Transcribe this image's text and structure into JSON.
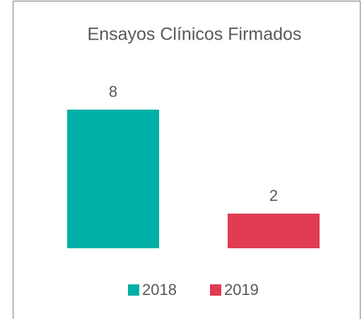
{
  "chart_data": {
    "type": "bar",
    "title": "Ensayos Clínicos Firmados",
    "categories": [
      null
    ],
    "series": [
      {
        "name": "2018",
        "color": "#00b0a6",
        "values": [
          8
        ]
      },
      {
        "name": "2019",
        "color": "#e03c54",
        "values": [
          2
        ]
      }
    ],
    "legend": "bottom"
  }
}
